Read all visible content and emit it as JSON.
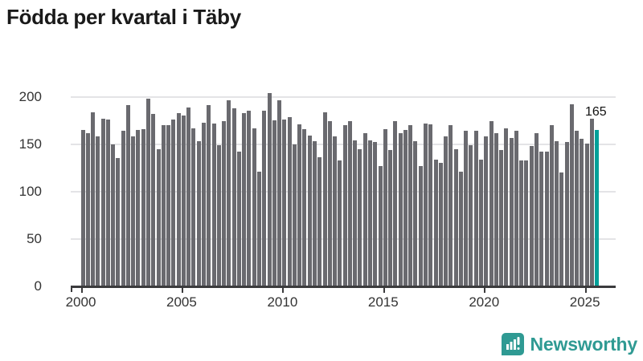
{
  "title": "Födda per kvartal i Täby",
  "chart_data": {
    "type": "bar",
    "title": "Födda per kvartal i Täby",
    "frequency": "quarterly",
    "x_start_year": 2000,
    "x_start_quarter": 1,
    "values": [
      165,
      162,
      184,
      158,
      177,
      176,
      150,
      135,
      164,
      191,
      158,
      165,
      166,
      198,
      182,
      145,
      170,
      170,
      176,
      183,
      180,
      189,
      167,
      153,
      173,
      191,
      172,
      149,
      174,
      196,
      188,
      142,
      183,
      185,
      167,
      121,
      185,
      204,
      175,
      196,
      176,
      179,
      150,
      171,
      166,
      159,
      153,
      136,
      184,
      174,
      158,
      133,
      170,
      174,
      154,
      145,
      162,
      154,
      152,
      127,
      166,
      144,
      174,
      162,
      165,
      170,
      153,
      127,
      172,
      171,
      134,
      130,
      158,
      170,
      145,
      121,
      164,
      149,
      164,
      134,
      158,
      174,
      162,
      144,
      167,
      157,
      164,
      133,
      133,
      148,
      162,
      142,
      142,
      170,
      153,
      120,
      152,
      192,
      164,
      156,
      151,
      177,
      165
    ],
    "x_tick_years": [
      2000,
      2005,
      2010,
      2015,
      2020,
      2025
    ],
    "y_ticks": [
      0,
      50,
      100,
      150,
      200
    ],
    "ylim": [
      0,
      212
    ],
    "grid": true,
    "legend": "none",
    "bar_color": "#6a6a6f",
    "highlight_last": true,
    "highlight_color": "#00a099",
    "highlight_value_label": "165"
  },
  "logo": {
    "text": "Newsworthy",
    "color": "#2f9a93",
    "icon": "newsworthy-speech-bubble-bar-chart-icon"
  }
}
